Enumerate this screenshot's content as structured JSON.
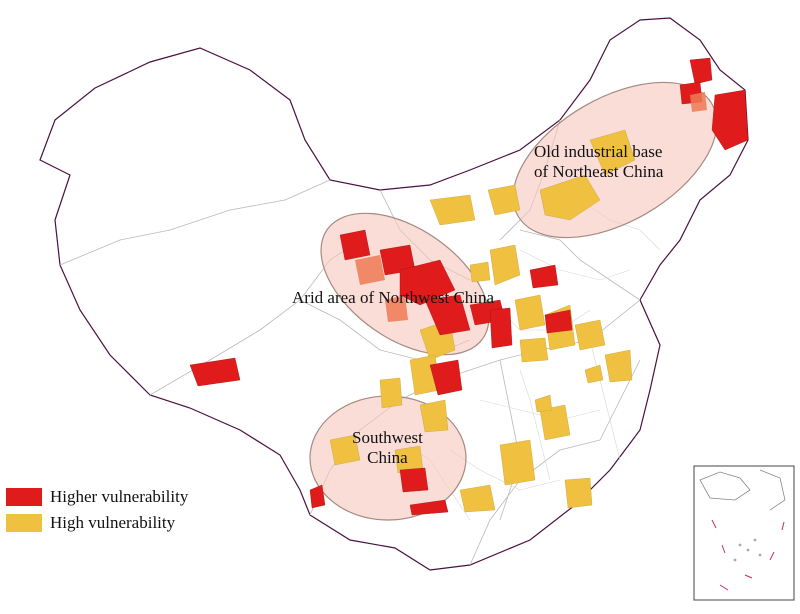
{
  "map": {
    "regions": [
      {
        "line1": "Old industrial base",
        "line2": "of Northeast China"
      },
      {
        "line1": "Arid area of Northwest China"
      },
      {
        "line1": "Southwest",
        "line2": "China"
      }
    ],
    "legend": [
      {
        "label": "Higher vulnerability",
        "color": "#e01b1b"
      },
      {
        "label": "High vulnerability",
        "color": "#f0c040"
      }
    ],
    "colors": {
      "boundary": "#4a1040",
      "county_line": "#c8c8c8",
      "highlight_fill": "#f6c7bd",
      "highlight_stroke": "#a58a80"
    }
  }
}
